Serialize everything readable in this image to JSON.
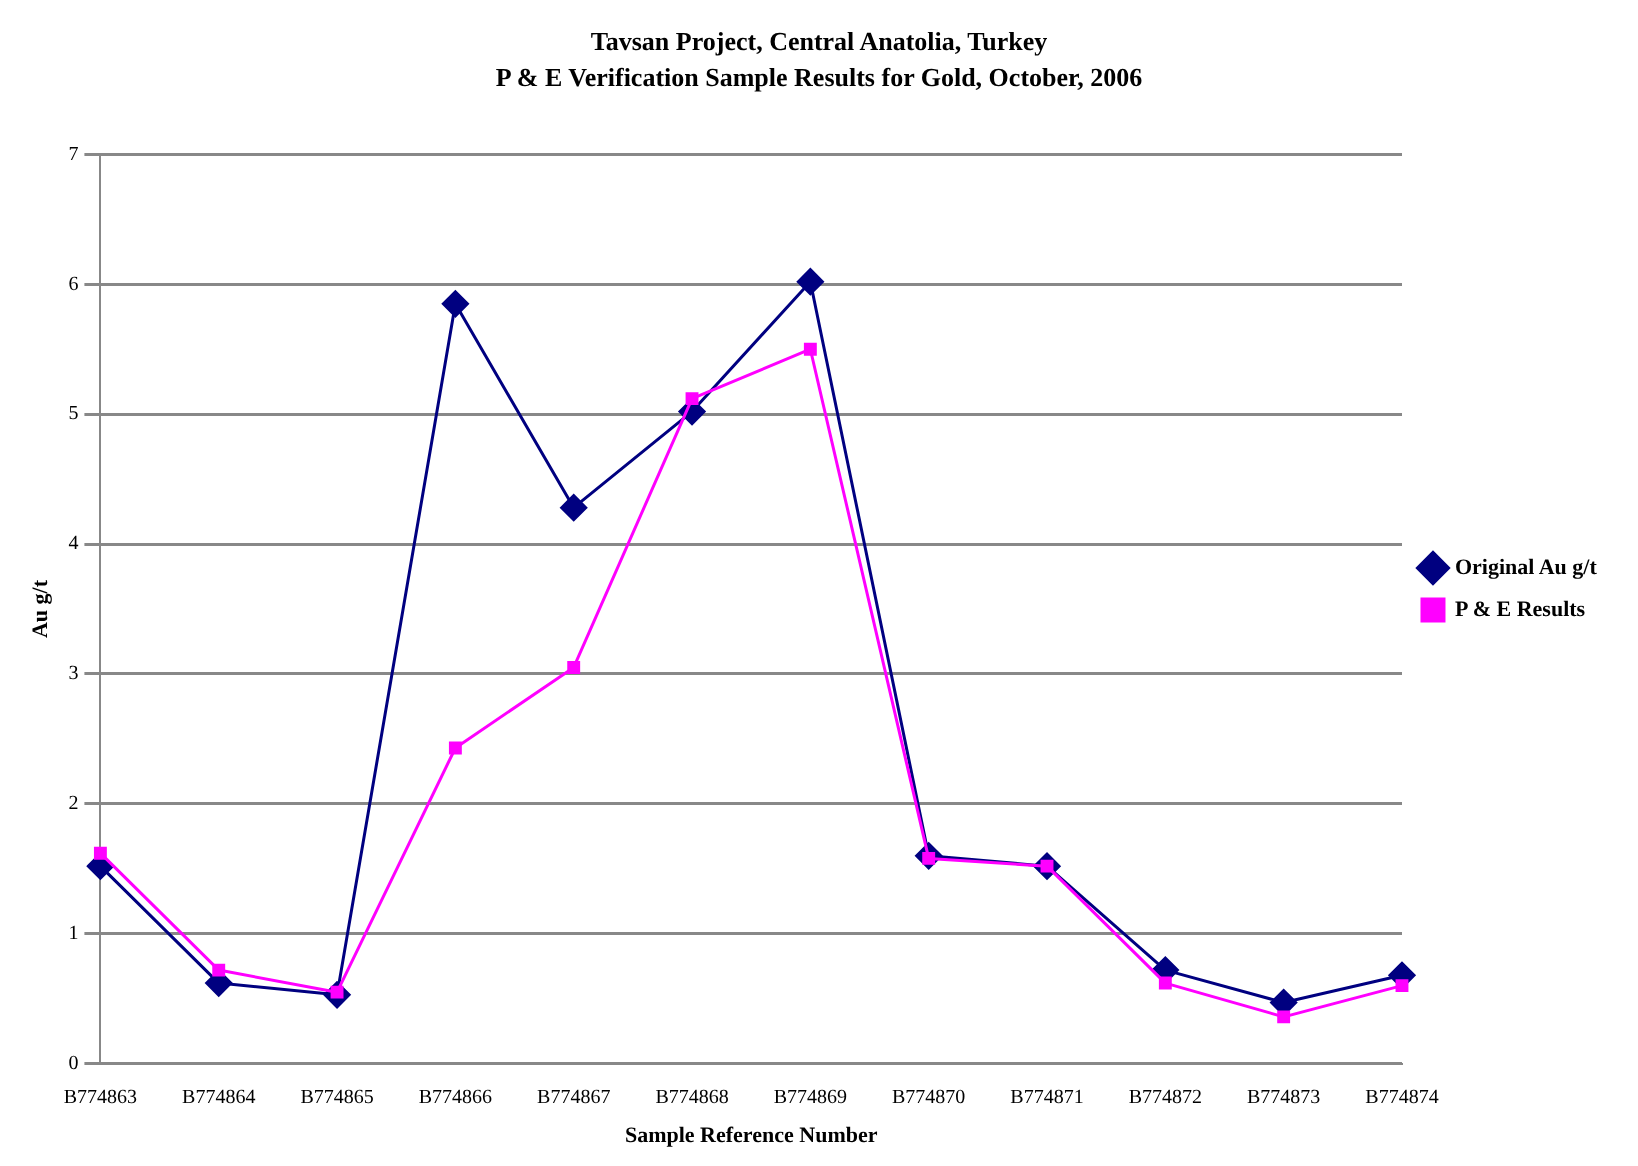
{
  "chart_data": {
    "type": "line",
    "title": "Tavsan Project, Central Anatolia, Turkey",
    "subtitle": "P & E Verification Sample Results for Gold, October, 2006",
    "xlabel": "Sample Reference Number",
    "ylabel": "Au g/t",
    "categories": [
      "B774863",
      "B774864",
      "B774865",
      "B774866",
      "B774867",
      "B774868",
      "B774869",
      "B774870",
      "B774871",
      "B774872",
      "B774873",
      "B774874"
    ],
    "series": [
      {
        "name": "Original Au g/t",
        "color": "#000080",
        "marker": "diamond",
        "values": [
          1.52,
          0.62,
          0.53,
          5.85,
          4.28,
          5.02,
          6.02,
          1.6,
          1.52,
          0.72,
          0.47,
          0.68
        ]
      },
      {
        "name": "P & E Results",
        "color": "#ff00ff",
        "marker": "square",
        "values": [
          1.62,
          0.72,
          0.55,
          2.43,
          3.05,
          5.12,
          5.5,
          1.58,
          1.52,
          0.62,
          0.36,
          0.6
        ]
      }
    ],
    "ylim": [
      0,
      7
    ],
    "yticks": [
      0,
      1,
      2,
      3,
      4,
      5,
      6,
      7
    ],
    "grid": "y",
    "legend": "right",
    "line_style": "solid"
  }
}
